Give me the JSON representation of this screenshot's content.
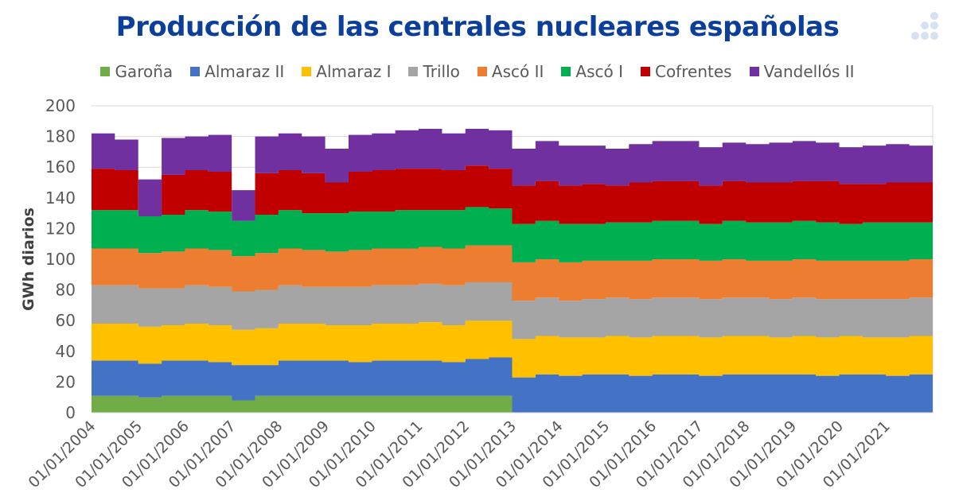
{
  "chart_data": {
    "type": "area",
    "stacked": true,
    "title": "Producción de las centrales nucleares españolas",
    "xlabel": "",
    "ylabel": "GWh diarios",
    "ylim": [
      0,
      200
    ],
    "yticks": [
      0,
      20,
      40,
      60,
      80,
      100,
      120,
      140,
      160,
      180,
      200
    ],
    "xtick_labels": [
      "01/01/2004",
      "01/01/2005",
      "01/01/2006",
      "01/01/2007",
      "01/01/2008",
      "01/01/2009",
      "01/01/2010",
      "01/01/2011",
      "01/01/2012",
      "01/01/2013",
      "01/01/2014",
      "01/01/2015",
      "01/01/2016",
      "01/01/2017",
      "01/01/2018",
      "01/01/2019",
      "01/01/2020",
      "01/01/2021"
    ],
    "x_periods": "half-years from 2004-H1 to 2021-H2",
    "grid": true,
    "legend_position": "top",
    "series": [
      {
        "name": "Garoña",
        "color": "#70ad47",
        "values": [
          11,
          11,
          10,
          11,
          11,
          11,
          8,
          11,
          11,
          11,
          11,
          11,
          11,
          11,
          11,
          11,
          11,
          11,
          0,
          0,
          0,
          0,
          0,
          0,
          0,
          0,
          0,
          0,
          0,
          0,
          0,
          0,
          0,
          0,
          0,
          0
        ]
      },
      {
        "name": "Almaraz II",
        "color": "#4472c4",
        "values": [
          23,
          23,
          22,
          23,
          23,
          22,
          23,
          20,
          23,
          23,
          23,
          22,
          23,
          23,
          23,
          22,
          24,
          25,
          23,
          25,
          24,
          25,
          25,
          24,
          25,
          25,
          24,
          25,
          25,
          25,
          25,
          24,
          25,
          25,
          24,
          25
        ]
      },
      {
        "name": "Almaraz I",
        "color": "#ffc000",
        "values": [
          24,
          24,
          24,
          23,
          24,
          24,
          23,
          24,
          24,
          24,
          23,
          24,
          24,
          24,
          25,
          24,
          25,
          24,
          25,
          25,
          25,
          24,
          25,
          25,
          25,
          25,
          25,
          25,
          25,
          24,
          25,
          25,
          25,
          24,
          25,
          25
        ]
      },
      {
        "name": "Trillo",
        "color": "#a5a5a5",
        "values": [
          25,
          25,
          25,
          24,
          25,
          25,
          25,
          25,
          25,
          24,
          25,
          25,
          25,
          25,
          25,
          26,
          25,
          25,
          25,
          25,
          24,
          25,
          25,
          25,
          25,
          25,
          25,
          25,
          25,
          25,
          25,
          25,
          24,
          25,
          25,
          25
        ]
      },
      {
        "name": "Ascó II",
        "color": "#ed7d31",
        "values": [
          24,
          24,
          23,
          24,
          24,
          24,
          23,
          24,
          24,
          24,
          23,
          24,
          24,
          24,
          24,
          24,
          24,
          24,
          25,
          25,
          25,
          25,
          24,
          25,
          25,
          25,
          25,
          25,
          24,
          25,
          25,
          25,
          25,
          25,
          25,
          25
        ]
      },
      {
        "name": "Ascó I",
        "color": "#00b050",
        "values": [
          25,
          25,
          24,
          24,
          25,
          25,
          23,
          25,
          25,
          24,
          25,
          25,
          24,
          25,
          24,
          25,
          25,
          24,
          25,
          25,
          25,
          24,
          25,
          25,
          25,
          25,
          24,
          25,
          25,
          25,
          25,
          25,
          24,
          25,
          25,
          24
        ]
      },
      {
        "name": "Cofrentes",
        "color": "#c00000",
        "values": [
          27,
          26,
          0,
          26,
          26,
          26,
          0,
          27,
          26,
          26,
          20,
          26,
          27,
          27,
          27,
          26,
          27,
          26,
          25,
          26,
          25,
          26,
          24,
          26,
          26,
          26,
          25,
          26,
          26,
          26,
          26,
          27,
          26,
          25,
          26,
          26
        ]
      },
      {
        "name": "Vandellós II",
        "color": "#7030a0",
        "values": [
          23,
          20,
          24,
          24,
          22,
          24,
          20,
          24,
          24,
          24,
          22,
          24,
          24,
          25,
          26,
          24,
          24,
          25,
          24,
          26,
          26,
          25,
          24,
          25,
          26,
          26,
          25,
          25,
          25,
          26,
          26,
          25,
          24,
          25,
          25,
          24
        ]
      }
    ]
  }
}
